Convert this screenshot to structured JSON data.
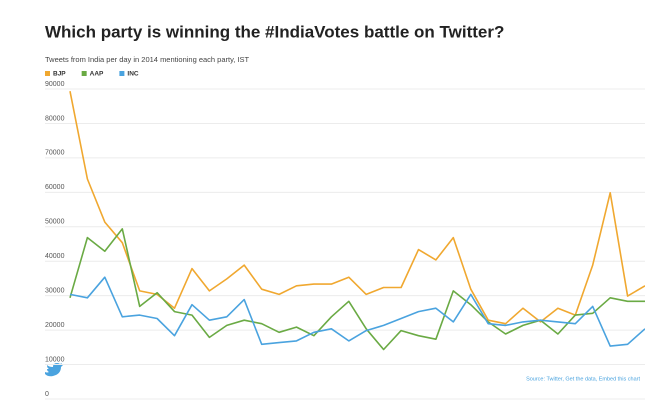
{
  "chart_data": {
    "type": "line",
    "title": "Which party is winning the #IndiaVotes battle on Twitter?",
    "subtitle": "Tweets from India per day in 2014 mentioning each party, IST",
    "source": "Source: Twitter, Get the data, Embed this chart",
    "categories": [
      null,
      null,
      null,
      null,
      null,
      null,
      null,
      null,
      null,
      null,
      null,
      null,
      null,
      null,
      null,
      null,
      null,
      null,
      null,
      null,
      null,
      null,
      null,
      null,
      null,
      null,
      null,
      null,
      null,
      null,
      null,
      null,
      null,
      null
    ],
    "ylim": [
      0,
      90000
    ],
    "yticks": [
      0,
      10000,
      20000,
      30000,
      40000,
      50000,
      60000,
      70000,
      80000,
      90000
    ],
    "grid": true,
    "legend": "top-left",
    "series": [
      {
        "name": "BJP",
        "color": "#f0a830",
        "values": [
          88500,
          63000,
          50500,
          44500,
          30500,
          29500,
          25500,
          37000,
          30500,
          34000,
          38000,
          31000,
          29500,
          32000,
          32500,
          32500,
          34500,
          29500,
          31500,
          31500,
          42500,
          39500,
          46000,
          31000,
          22000,
          21000,
          25500,
          21500,
          25500,
          23500,
          38000,
          59000,
          29000,
          32000
        ]
      },
      {
        "name": "AAP",
        "color": "#6aaa44",
        "values": [
          28500,
          46000,
          42000,
          48500,
          26000,
          30000,
          24500,
          23500,
          17000,
          20500,
          22000,
          21000,
          18500,
          20000,
          17500,
          23000,
          27500,
          19500,
          13500,
          19000,
          17500,
          16500,
          30500,
          26500,
          21500,
          18000,
          20500,
          22000,
          18000,
          23500,
          24000,
          28500,
          27500,
          27500
        ]
      },
      {
        "name": "INC",
        "color": "#4aa3df",
        "values": [
          29500,
          28500,
          34500,
          23000,
          23500,
          22500,
          17500,
          26500,
          22000,
          23000,
          28000,
          15000,
          15500,
          16000,
          18500,
          19500,
          16000,
          19000,
          20500,
          22500,
          24500,
          25500,
          21500,
          29500,
          21000,
          20500,
          21500,
          22000,
          21500,
          21000,
          26000,
          14500,
          15000,
          19500
        ]
      }
    ]
  }
}
